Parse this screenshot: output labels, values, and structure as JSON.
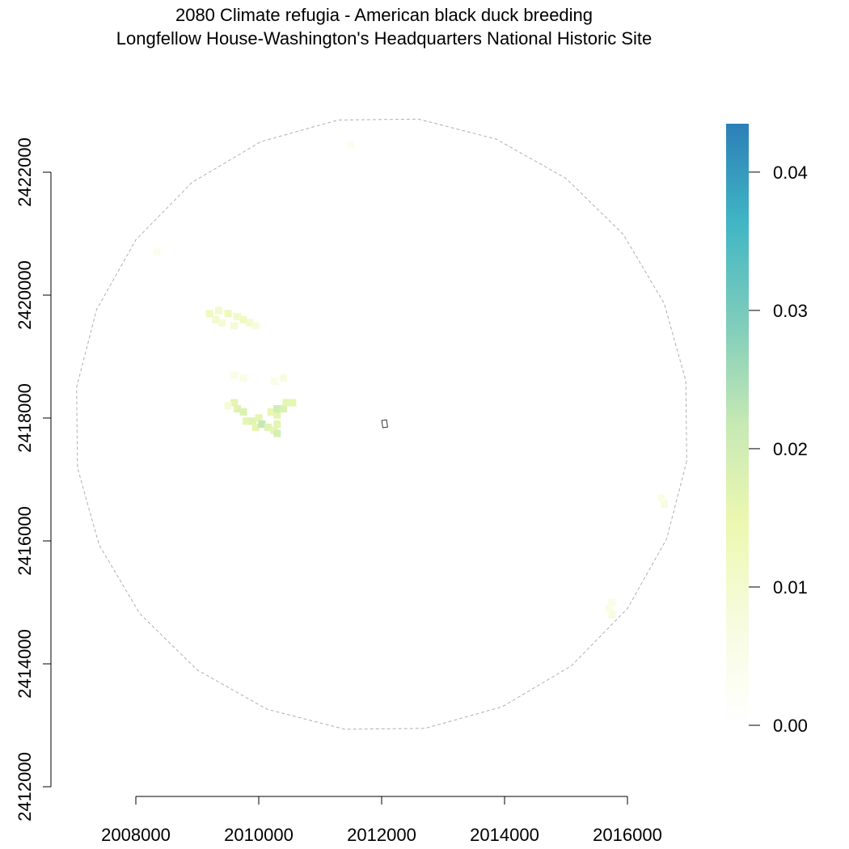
{
  "chart_data": {
    "type": "heatmap",
    "title": "2080 Climate refugia - American black duck breeding",
    "subtitle": "Longfellow House-Washington's Headquarters National Historic Site",
    "xlabel": "",
    "ylabel": "",
    "xlim": [
      2006400,
      2016900
    ],
    "ylim": [
      2412000,
      2423700
    ],
    "x_ticks": [
      2008000,
      2010000,
      2012000,
      2014000,
      2016000
    ],
    "x_tick_labels": [
      "2008000",
      "2010000",
      "2012000",
      "2014000",
      "2016000"
    ],
    "y_ticks": [
      2412000,
      2414000,
      2416000,
      2418000,
      2420000,
      2422000
    ],
    "y_tick_labels": [
      "2412000",
      "2414000",
      "2416000",
      "2418000",
      "2420000",
      "2422000"
    ],
    "legend": {
      "placement": "right",
      "min": 0.0,
      "max": 0.0435,
      "ticks": [
        0.0,
        0.01,
        0.02,
        0.03,
        0.04
      ],
      "tick_labels": [
        "0.00",
        "0.01",
        "0.02",
        "0.03",
        "0.04"
      ],
      "colors": [
        "#ffffff",
        "#f7fce0",
        "#edf8b1",
        "#c7e9b4",
        "#7fcdbb",
        "#41b6c4",
        "#2c7fb8"
      ]
    },
    "buffer_circle": {
      "center": [
        2012000,
        2417900
      ],
      "radius": 5000
    },
    "site_marker": {
      "x": 2012050,
      "y": 2417900
    },
    "cells": [
      {
        "x": 2009200,
        "y": 2419700,
        "v": 0.012
      },
      {
        "x": 2009350,
        "y": 2419750,
        "v": 0.01
      },
      {
        "x": 2009500,
        "y": 2419700,
        "v": 0.013
      },
      {
        "x": 2009650,
        "y": 2419650,
        "v": 0.011
      },
      {
        "x": 2009750,
        "y": 2419600,
        "v": 0.012
      },
      {
        "x": 2009850,
        "y": 2419550,
        "v": 0.01
      },
      {
        "x": 2009600,
        "y": 2419500,
        "v": 0.009
      },
      {
        "x": 2009950,
        "y": 2419500,
        "v": 0.008
      },
      {
        "x": 2009400,
        "y": 2419550,
        "v": 0.009
      },
      {
        "x": 2009300,
        "y": 2419600,
        "v": 0.01
      },
      {
        "x": 2009600,
        "y": 2418700,
        "v": 0.006
      },
      {
        "x": 2009750,
        "y": 2418650,
        "v": 0.006
      },
      {
        "x": 2010250,
        "y": 2418600,
        "v": 0.006
      },
      {
        "x": 2010400,
        "y": 2418650,
        "v": 0.007
      },
      {
        "x": 2009600,
        "y": 2418250,
        "v": 0.016
      },
      {
        "x": 2009650,
        "y": 2418150,
        "v": 0.017
      },
      {
        "x": 2009750,
        "y": 2418100,
        "v": 0.018
      },
      {
        "x": 2009800,
        "y": 2417950,
        "v": 0.016
      },
      {
        "x": 2009900,
        "y": 2417950,
        "v": 0.017
      },
      {
        "x": 2010000,
        "y": 2418000,
        "v": 0.016
      },
      {
        "x": 2009950,
        "y": 2417850,
        "v": 0.016
      },
      {
        "x": 2010050,
        "y": 2417900,
        "v": 0.022
      },
      {
        "x": 2010150,
        "y": 2417850,
        "v": 0.017
      },
      {
        "x": 2010250,
        "y": 2417800,
        "v": 0.016
      },
      {
        "x": 2010300,
        "y": 2417750,
        "v": 0.019
      },
      {
        "x": 2010300,
        "y": 2417900,
        "v": 0.016
      },
      {
        "x": 2010300,
        "y": 2418050,
        "v": 0.016
      },
      {
        "x": 2010200,
        "y": 2418100,
        "v": 0.015
      },
      {
        "x": 2010300,
        "y": 2418150,
        "v": 0.02
      },
      {
        "x": 2010400,
        "y": 2418150,
        "v": 0.018
      },
      {
        "x": 2010450,
        "y": 2418250,
        "v": 0.016
      },
      {
        "x": 2010550,
        "y": 2418250,
        "v": 0.016
      },
      {
        "x": 2009500,
        "y": 2418200,
        "v": 0.009
      },
      {
        "x": 2016600,
        "y": 2416600,
        "v": 0.007
      },
      {
        "x": 2016550,
        "y": 2416700,
        "v": 0.006
      },
      {
        "x": 2015750,
        "y": 2415000,
        "v": 0.006
      },
      {
        "x": 2015700,
        "y": 2414900,
        "v": 0.006
      },
      {
        "x": 2015750,
        "y": 2414800,
        "v": 0.007
      },
      {
        "x": 2011500,
        "y": 2422450,
        "v": 0.004
      },
      {
        "x": 2008350,
        "y": 2420700,
        "v": 0.004
      }
    ]
  }
}
